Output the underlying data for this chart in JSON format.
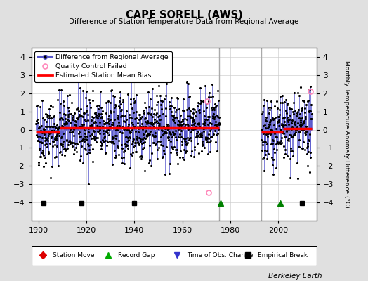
{
  "title": "CAPE SORELL (AWS)",
  "subtitle": "Difference of Station Temperature Data from Regional Average",
  "ylabel_right": "Monthly Temperature Anomaly Difference (°C)",
  "credit": "Berkeley Earth",
  "xlim": [
    1897,
    2016
  ],
  "ylim": [
    -5,
    4.5
  ],
  "yticks": [
    -4,
    -3,
    -2,
    -1,
    0,
    1,
    2,
    3,
    4
  ],
  "xticks": [
    1900,
    1920,
    1940,
    1960,
    1980,
    2000
  ],
  "background_color": "#e0e0e0",
  "plot_bg_color": "#ffffff",
  "data_color": "#5555cc",
  "fill_color": "#aaaaee",
  "marker_color": "#000000",
  "bias_color": "#ff0000",
  "seed": 42,
  "station_start": 1899.0,
  "gap_start": 1975.5,
  "station_start2": 1993.0,
  "station_end2": 2014.0,
  "bias_segments": [
    {
      "start": 1899.0,
      "end": 1909.0,
      "value": -0.15
    },
    {
      "start": 1909.0,
      "end": 1940.0,
      "value": 0.1
    },
    {
      "start": 1940.0,
      "end": 1975.5,
      "value": 0.1
    },
    {
      "start": 1993.0,
      "end": 2002.0,
      "value": -0.15
    },
    {
      "start": 2002.0,
      "end": 2014.0,
      "value": 0.05
    }
  ],
  "empirical_breaks": [
    1902,
    1918,
    1940,
    2010
  ],
  "record_gaps": [
    1976,
    2001
  ],
  "qc_failed": [
    {
      "year": 1970.5,
      "value": 1.55
    },
    {
      "year": 1971.0,
      "value": -3.45
    },
    {
      "year": 2013.5,
      "value": 2.1
    }
  ],
  "vertical_lines": [
    1975.5,
    1993.0
  ],
  "std_dev": 0.95
}
